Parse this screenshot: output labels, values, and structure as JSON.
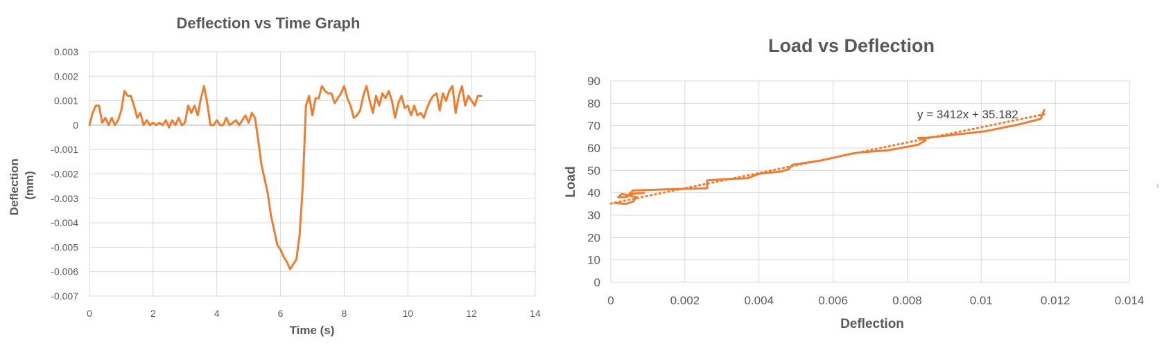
{
  "chart_data": [
    {
      "type": "line",
      "title": "Deflection vs Time Graph",
      "xlabel": "Time (s)",
      "ylabel": "Deflection (mm)",
      "ylabel_lines": [
        "Deflection",
        "(mm)"
      ],
      "xlim": [
        0,
        14
      ],
      "ylim": [
        -0.007,
        0.003
      ],
      "x_ticks": [
        0,
        2,
        4,
        6,
        8,
        10,
        12,
        14
      ],
      "y_ticks": [
        0.003,
        0.002,
        0.001,
        0,
        -0.001,
        -0.002,
        -0.003,
        -0.004,
        -0.005,
        -0.006,
        -0.007
      ],
      "x_tick_labels": [
        "0",
        "2",
        "4",
        "6",
        "8",
        "10",
        "12",
        "14"
      ],
      "y_tick_labels": [
        "0.003",
        "0.002",
        "0.001",
        "0",
        "-0.001",
        "-0.002",
        "-0.003",
        "-0.004",
        "-0.005",
        "-0.006",
        "-0.007"
      ],
      "grid": true,
      "legend": "none",
      "series": [
        {
          "color": "#ED7D31",
          "x": [
            0.0,
            0.1,
            0.2,
            0.3,
            0.4,
            0.5,
            0.6,
            0.7,
            0.8,
            0.9,
            1.0,
            1.1,
            1.2,
            1.3,
            1.4,
            1.5,
            1.6,
            1.7,
            1.8,
            1.9,
            2.0,
            2.1,
            2.2,
            2.3,
            2.4,
            2.5,
            2.6,
            2.7,
            2.8,
            2.9,
            3.0,
            3.1,
            3.2,
            3.3,
            3.4,
            3.5,
            3.6,
            3.7,
            3.8,
            3.9,
            4.0,
            4.1,
            4.2,
            4.3,
            4.4,
            4.5,
            4.6,
            4.7,
            4.8,
            4.9,
            5.0,
            5.1,
            5.2,
            5.3,
            5.4,
            5.5,
            5.6,
            5.7,
            5.8,
            5.9,
            6.0,
            6.1,
            6.2,
            6.3,
            6.4,
            6.5,
            6.6,
            6.7,
            6.8,
            6.9,
            7.0,
            7.1,
            7.2,
            7.3,
            7.4,
            7.5,
            7.6,
            7.7,
            7.8,
            7.9,
            8.0,
            8.1,
            8.2,
            8.3,
            8.4,
            8.5,
            8.6,
            8.7,
            8.8,
            8.9,
            9.0,
            9.1,
            9.2,
            9.3,
            9.4,
            9.5,
            9.6,
            9.7,
            9.8,
            9.9,
            10.0,
            10.1,
            10.2,
            10.3,
            10.4,
            10.5,
            10.6,
            10.7,
            10.8,
            10.9,
            11.0,
            11.1,
            11.2,
            11.3,
            11.4,
            11.5,
            11.6,
            11.7,
            11.8,
            11.9,
            12.0,
            12.1,
            12.2,
            12.3
          ],
          "y": [
            0.0,
            0.0005,
            0.0008,
            0.0008,
            0.0001,
            0.0003,
            0.0,
            0.0003,
            0.0,
            0.0002,
            0.0006,
            0.0014,
            0.0012,
            0.0012,
            0.0008,
            0.0003,
            0.0005,
            0.0,
            0.0002,
            0.0,
            0.0001,
            0.0,
            0.0001,
            0.0,
            0.0002,
            -0.0001,
            0.0002,
            0.0,
            0.0003,
            0.0,
            0.0001,
            0.0008,
            0.0005,
            0.0008,
            0.0004,
            0.0011,
            0.0016,
            0.0009,
            0.0,
            0.0,
            0.0002,
            0.0,
            0.0,
            0.0003,
            0.0,
            0.0001,
            0.0002,
            0.0,
            0.0002,
            0.0004,
            0.0001,
            0.0005,
            0.0003,
            -0.0006,
            -0.0016,
            -0.0022,
            -0.0028,
            -0.0037,
            -0.0043,
            -0.0049,
            -0.0051,
            -0.0054,
            -0.0056,
            -0.0059,
            -0.0057,
            -0.0055,
            -0.0045,
            -0.0025,
            0.0008,
            0.0012,
            0.0004,
            0.0011,
            0.0011,
            0.0016,
            0.0014,
            0.0013,
            0.0013,
            0.0009,
            0.0011,
            0.0013,
            0.0016,
            0.0011,
            0.0008,
            0.0003,
            0.0004,
            0.0006,
            0.0012,
            0.0016,
            0.001,
            0.0005,
            0.0012,
            0.0008,
            0.0013,
            0.0011,
            0.0014,
            0.001,
            0.0003,
            0.0009,
            0.0012,
            0.0007,
            0.0008,
            0.0004,
            0.0008,
            0.0004,
            0.0005,
            0.0003,
            0.0007,
            0.001,
            0.0012,
            0.0013,
            0.0006,
            0.0013,
            0.001,
            0.0014,
            0.0016,
            0.0005,
            0.0012,
            0.0016,
            0.0008,
            0.0012,
            0.001,
            0.0008,
            0.0012,
            0.0012
          ]
        }
      ]
    },
    {
      "type": "scatter",
      "title": "Load vs Deflection",
      "xlabel": "Deflection",
      "ylabel": "Load",
      "xlim": [
        0,
        0.014
      ],
      "ylim": [
        0,
        90
      ],
      "x_ticks": [
        0,
        0.002,
        0.004,
        0.006,
        0.008,
        0.01,
        0.012,
        0.014
      ],
      "y_ticks": [
        0,
        10,
        20,
        30,
        40,
        50,
        60,
        70,
        80,
        90
      ],
      "x_tick_labels": [
        "0",
        "0.002",
        "0.004",
        "0.006",
        "0.008",
        "0.01",
        "0.012",
        "0.014"
      ],
      "y_tick_labels": [
        "0",
        "10",
        "20",
        "30",
        "40",
        "50",
        "60",
        "70",
        "80",
        "90"
      ],
      "grid": true,
      "legend": "none",
      "annotation": "y = 3412x + 35.182",
      "series": [
        {
          "style": "solid",
          "color": "#ED7D31",
          "x": [
            0.0001,
            0.0004,
            0.0006,
            0.0007,
            0.0003,
            0.0002,
            0.0004,
            0.0006,
            0.0009,
            0.0005,
            0.0006,
            0.0015,
            0.0026,
            0.0026,
            0.003,
            0.0037,
            0.004,
            0.0046,
            0.0048,
            0.0049,
            0.0057,
            0.0065,
            0.0067,
            0.0075,
            0.0083,
            0.0085,
            0.0083,
            0.0085,
            0.0093,
            0.0101,
            0.011,
            0.0116,
            0.0117
          ],
          "y": [
            35.5,
            35.0,
            36.0,
            38.0,
            39.5,
            38.0,
            38.0,
            39.5,
            40.0,
            39.5,
            41.0,
            41.5,
            42.0,
            45.5,
            46.0,
            46.5,
            48.5,
            49.5,
            50.5,
            52.5,
            54.5,
            57.5,
            58.0,
            59.0,
            61.5,
            63.5,
            64.5,
            64.5,
            66.0,
            67.5,
            70.5,
            73.0,
            77.0
          ]
        },
        {
          "style": "dotted-trendline",
          "color": "#ED7D31",
          "x": [
            0.0,
            0.0117
          ],
          "y": [
            35.182,
            75.102
          ]
        }
      ]
    }
  ]
}
